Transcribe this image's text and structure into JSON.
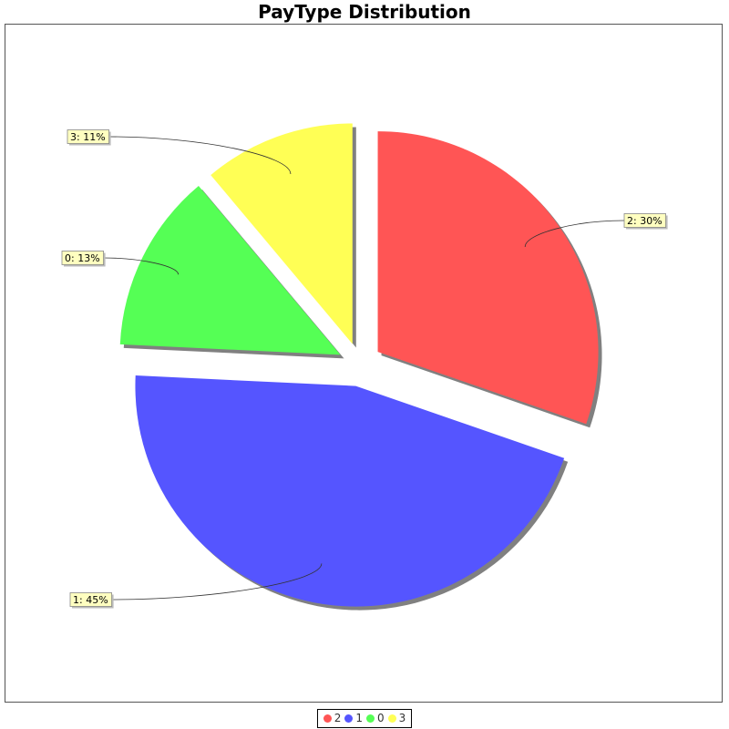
{
  "chart_data": {
    "type": "pie",
    "title": "PayType Distribution",
    "slices": [
      {
        "name": "2",
        "value": 30,
        "label": "2: 30%",
        "color": "#FF5555"
      },
      {
        "name": "1",
        "value": 45,
        "label": "1: 45%",
        "color": "#5555FF"
      },
      {
        "name": "0",
        "value": 13,
        "label": "0: 13%",
        "color": "#55FF55"
      },
      {
        "name": "3",
        "value": 11,
        "label": "3: 11%",
        "color": "#FFFF55"
      }
    ],
    "legend": {
      "position": "bottom",
      "entries": [
        "2",
        "1",
        "0",
        "3"
      ]
    },
    "exploded": true,
    "shadow": true
  }
}
